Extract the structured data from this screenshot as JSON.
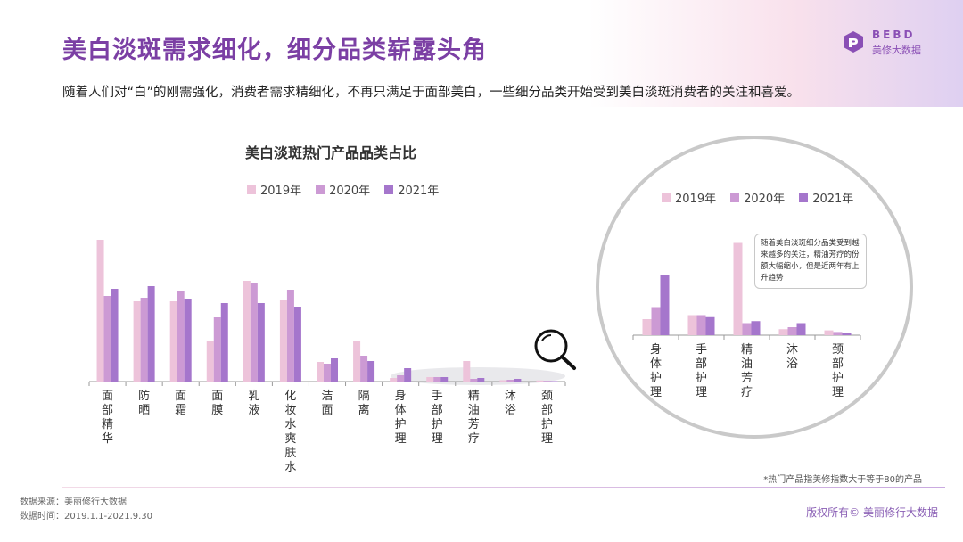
{
  "header": {
    "title": "美白淡斑需求细化，细分品类崭露头角",
    "subtitle": "随着人们对“白”的刚需强化，消费者需求精细化，不再只满足于面部美白，一些细分品类开始受到美白淡斑消费者的关注和喜爱。"
  },
  "logo": {
    "en": "BEBD",
    "cn": "美修大数据"
  },
  "colors": {
    "y2019": "#edc3da",
    "y2020": "#cc9ad4",
    "y2021": "#a576cc",
    "title": "#7b3fa4",
    "axis": "#999999"
  },
  "legend": [
    "2019年",
    "2020年",
    "2021年"
  ],
  "chart_data": [
    {
      "type": "bar",
      "title": "美白淡斑热门产品品类占比",
      "categories": [
        "面部精华",
        "防晒",
        "面霜",
        "面膜",
        "乳液",
        "化妆水爽肤水",
        "洁面",
        "隔离",
        "身体护理",
        "手部护理",
        "精油芳疗",
        "沐浴",
        "颈部护理"
      ],
      "series": [
        {
          "name": "2019年",
          "values": [
            15.9,
            9.0,
            9.0,
            4.5,
            11.3,
            9.1,
            2.2,
            4.5,
            0.4,
            0.5,
            2.3,
            0.15,
            0.12
          ]
        },
        {
          "name": "2020年",
          "values": [
            9.6,
            9.4,
            10.2,
            7.2,
            11.1,
            10.3,
            2.0,
            2.9,
            0.7,
            0.5,
            0.3,
            0.2,
            0.08
          ]
        },
        {
          "name": "2021年",
          "values": [
            10.4,
            10.7,
            9.3,
            8.8,
            8.8,
            8.4,
            2.6,
            2.3,
            1.5,
            0.5,
            0.4,
            0.3,
            0.05
          ]
        }
      ],
      "ylim": [
        0,
        17
      ],
      "grid": false,
      "legend_position": "top"
    },
    {
      "type": "bar",
      "title": "",
      "categories": [
        "身体护理",
        "手部护理",
        "精油芳疗",
        "沐浴",
        "颈部护理"
      ],
      "series": [
        {
          "name": "2019年",
          "values": [
            0.4,
            0.5,
            2.3,
            0.15,
            0.12
          ]
        },
        {
          "name": "2020年",
          "values": [
            0.7,
            0.5,
            0.3,
            0.2,
            0.08
          ]
        },
        {
          "name": "2021年",
          "values": [
            1.5,
            0.45,
            0.35,
            0.3,
            0.05
          ]
        }
      ],
      "ylim": [
        0,
        2.4
      ],
      "grid": false,
      "legend_position": "top"
    }
  ],
  "callout": "随着美白淡斑细分品类受到越来越多的关注，精油芳疗的份额大幅缩小，但是近两年有上升趋势",
  "footnote": "*热门产品指美修指数大于等于80的产品",
  "source": {
    "line1": "数据来源：美丽修行大数据",
    "line2": "数据时间：2019.1.1-2021.9.30"
  },
  "copyright": "版权所有© 美丽修行大数据"
}
